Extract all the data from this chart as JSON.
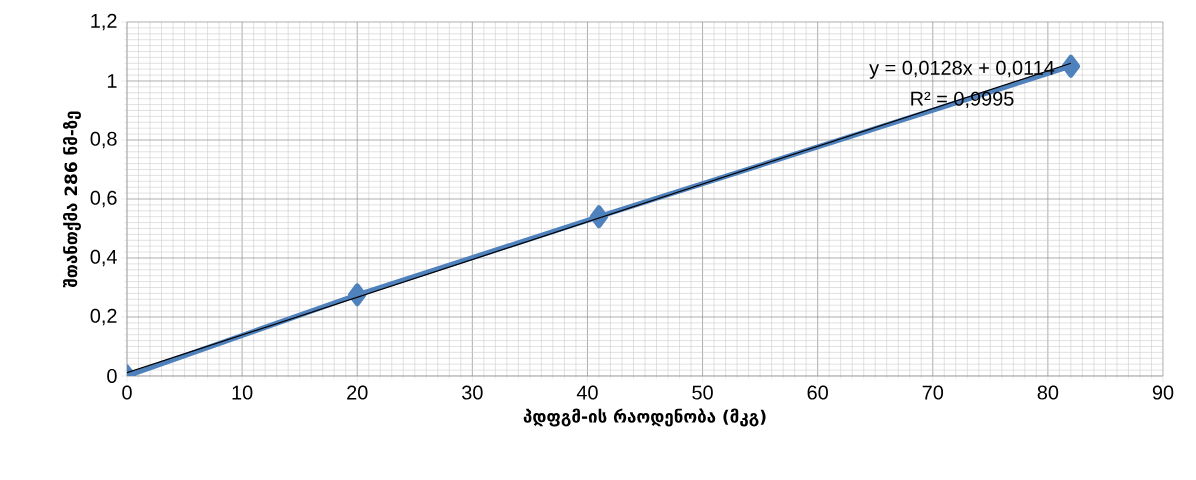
{
  "chart_data": {
    "type": "line",
    "xlabel": "პდფგმ-ის რაოდენობა (მკგ)",
    "ylabel": "შთანთქმა 286 ნმ-ზე",
    "xlim": [
      0,
      90
    ],
    "xticks": [
      0,
      10,
      20,
      30,
      40,
      50,
      60,
      70,
      80,
      90
    ],
    "ylim": [
      0,
      1.2
    ],
    "yticks": [
      0,
      {
        "value": 0.2,
        "label": "0,2"
      },
      {
        "value": 0.4,
        "label": "0,4"
      },
      {
        "value": 0.6,
        "label": "0,6"
      },
      {
        "value": 0.8,
        "label": "0,8"
      },
      1,
      {
        "value": 1.2,
        "label": "1,2"
      }
    ],
    "grid": true,
    "marker": "diamond",
    "series": [
      {
        "x": [
          0,
          20,
          41,
          82
        ],
        "values": [
          0,
          0.275,
          0.54,
          1.05
        ],
        "color": "#4f81bd"
      },
      {
        "type": "line",
        "marker": "none",
        "x": [
          0,
          82
        ],
        "values": [
          0.011,
          1.06
        ],
        "color": "#000000"
      }
    ],
    "annotations": [
      "y = 0,0128x + 0,0114",
      "R² = 0,9995"
    ]
  }
}
